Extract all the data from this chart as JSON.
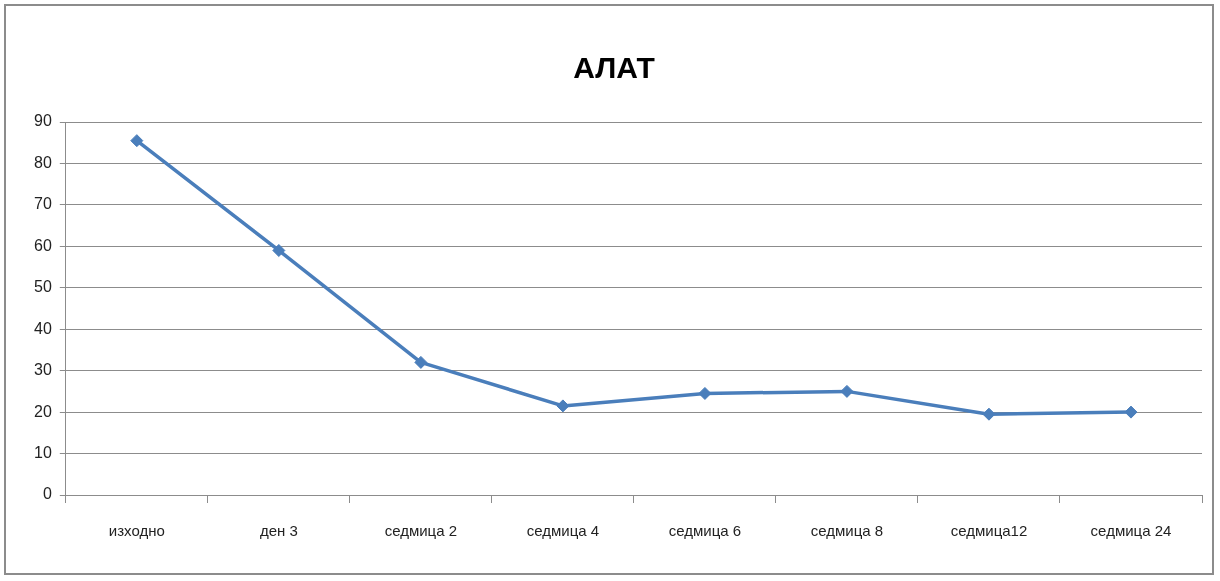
{
  "chart_data": {
    "type": "line",
    "title": "АЛАТ",
    "categories": [
      "изходно",
      "ден 3",
      "седмица 2",
      "седмица 4",
      "седмица 6",
      "седмица 8",
      "седмица12",
      "седмица 24"
    ],
    "series": [
      {
        "color": "#4a7ebb",
        "values": [
          85.5,
          59,
          32,
          21.5,
          24.5,
          25,
          19.5,
          20
        ]
      }
    ],
    "ylim": [
      0,
      90
    ],
    "yticks": [
      0,
      10,
      20,
      30,
      40,
      50,
      60,
      70,
      80,
      90
    ],
    "grid": "y",
    "legend": false,
    "marker": "diamond",
    "line_style": "solid"
  }
}
